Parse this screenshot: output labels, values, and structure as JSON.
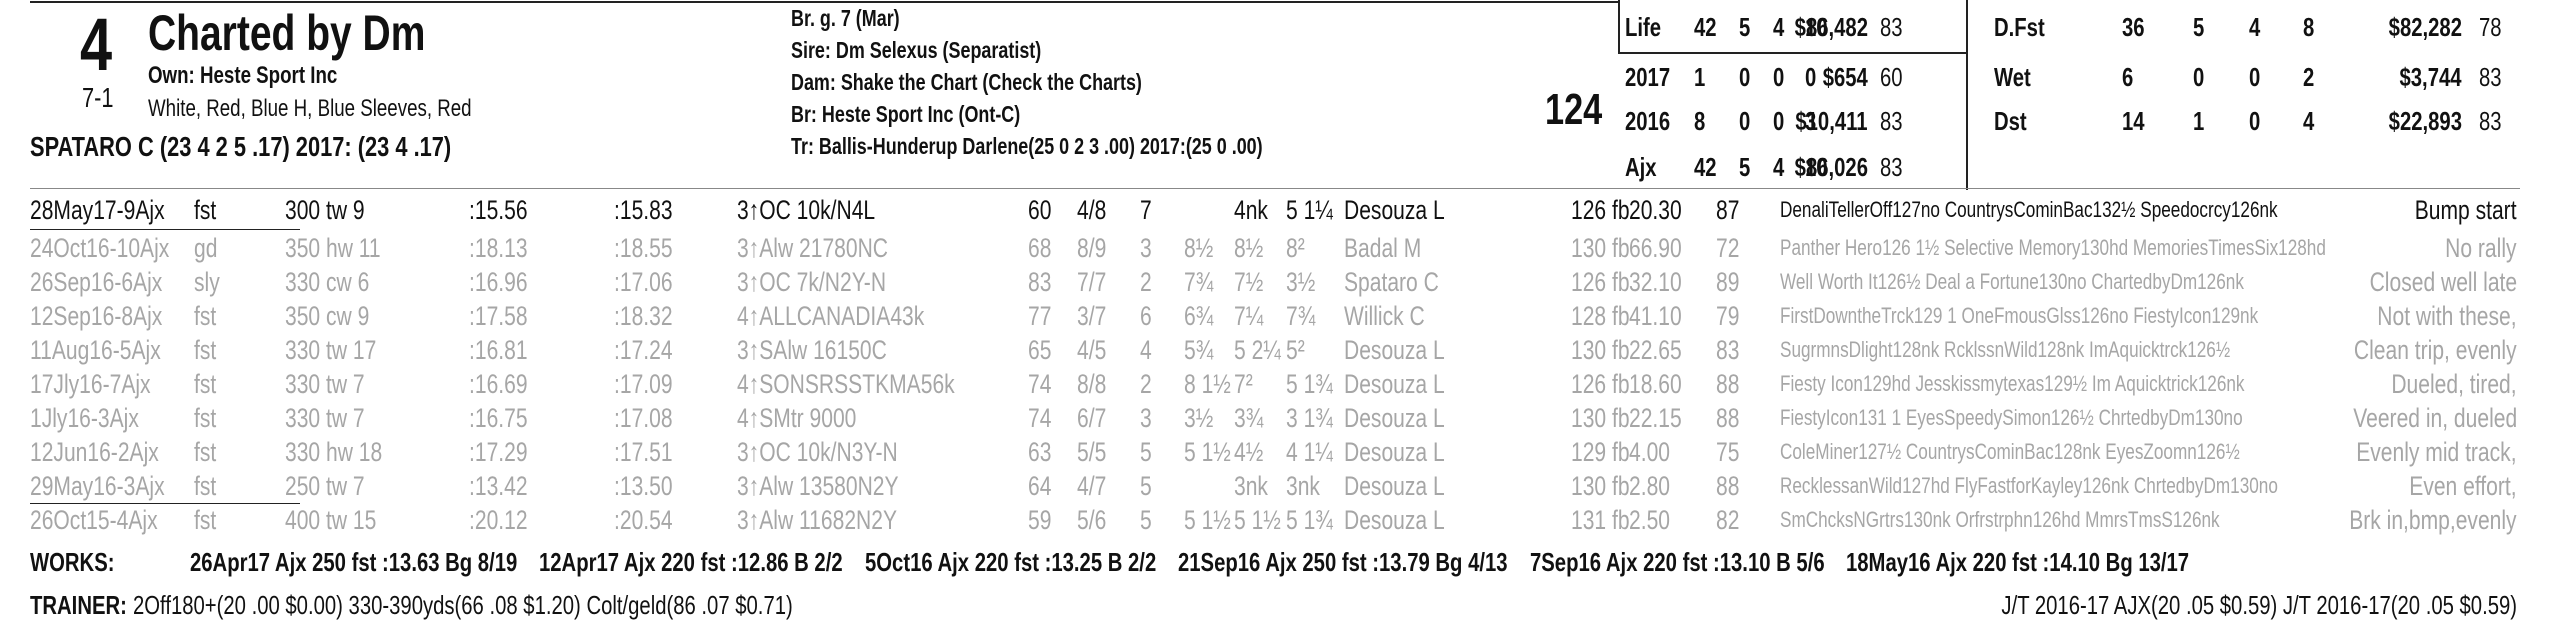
{
  "header": {
    "number": "4",
    "odds": "7-1",
    "name": "Charted by Dm",
    "owner": "Own: Heste Sport Inc",
    "silks": "White, Red, Blue H, Blue Sleeves, Red",
    "jockey": "SPATARO C (23 4 2 5 .17) 2017: (23 4 .17)"
  },
  "pedigree": [
    "Br. g. 7 (Mar)",
    "Sire: Dm Selexus (Separatist)",
    "Dam: Shake the Chart (Check the Charts)",
    "Br:  Heste Sport Inc (Ont-C)",
    "Tr:  Ballis-Hunderup Darlene(25 0 2 3 .00) 2017:(25 0 .00)"
  ],
  "weight": "124",
  "record": {
    "rows": [
      [
        "Life",
        "42",
        "5",
        "4",
        "10",
        "$86,482",
        "83"
      ],
      [
        "2017",
        "1",
        "0",
        "0",
        "0",
        "$654",
        "60"
      ],
      [
        "2016",
        "8",
        "0",
        "0",
        "3",
        "$10,411",
        "83"
      ],
      [
        "Ajx",
        "42",
        "5",
        "4",
        "10",
        "$86,026",
        "83"
      ]
    ]
  },
  "surface": {
    "rows": [
      [
        "D.Fst",
        "36",
        "5",
        "4",
        "8",
        "$82,282",
        "78"
      ],
      [
        "Wet",
        "6",
        "0",
        "0",
        "2",
        "$3,744",
        "83"
      ],
      [
        "Dst",
        "14",
        "1",
        "0",
        "4",
        "$22,893",
        "83"
      ]
    ]
  },
  "past_performances": {
    "rows": [
      [
        "28May17-9Ajx",
        "fst",
        "300 tw 9",
        ":15.56",
        ":15.83",
        "3↑OC 10k/N4L",
        "60",
        "4/8",
        "7",
        "",
        "4nk",
        "5 1¼",
        "Desouza L",
        "126 fb",
        "20.30",
        "87",
        "DenaliTellerOff127no CountrysCominBac132½ Speedocrcy126nk",
        "Bump start"
      ],
      [
        "24Oct16-10Ajx",
        "gd",
        "350 hw 11",
        ":18.13",
        ":18.55",
        "3↑Alw 21780NC",
        "68",
        "8/9",
        "3",
        "8½",
        "8½",
        "8²",
        "Badal M",
        "130 fb",
        "66.90",
        "72",
        "Panther Hero126 1½ Selective Memory130hd MemoriesTimesSix128hd",
        "No rally"
      ],
      [
        "26Sep16-6Ajx",
        "sly",
        "330 cw 6",
        ":16.96",
        ":17.06",
        "3↑OC 7k/N2Y-N",
        "83",
        "7/7",
        "2",
        "7¾",
        "7½",
        "3½",
        "Spataro C",
        "126 fb",
        "32.10",
        "89",
        "Well Worth It126½ Deal a Fortune130no ChartedbyDm126nk",
        "Closed well late"
      ],
      [
        "12Sep16-8Ajx",
        "fst",
        "350 cw 9",
        ":17.58",
        ":18.32",
        "4↑ALLCANADIA43k",
        "77",
        "3/7",
        "6",
        "6¾",
        "7¼",
        "7¾",
        "Willick C",
        "128 fb",
        "41.10",
        "79",
        "FirstDowntheTrck129 1 OneFmousGlss126no FiestyIcon129nk",
        "Not with these,"
      ],
      [
        "11Aug16-5Ajx",
        "fst",
        "330 tw 17",
        ":16.81",
        ":17.24",
        "3↑SAlw 16150C",
        "65",
        "4/5",
        "4",
        "5¾",
        "5 2¼",
        "5²",
        "Desouza L",
        "130 fb",
        "22.65",
        "83",
        "SugrmnsDlight128nk RcklssnWild128nk ImAquicktrck126½",
        "Clean trip, evenly"
      ],
      [
        "17Jly16-7Ajx",
        "fst",
        "330 tw 7",
        ":16.69",
        ":17.09",
        "4↑SONSRSSTKMA56k",
        "74",
        "8/8",
        "2",
        "8 1½",
        "7²",
        "5 1¾",
        "Desouza L",
        "126 fb",
        "18.60",
        "88",
        "Fiesty Icon129hd Jesskissmytexas129½ Im Aquicktrick126nk",
        "Dueled, tired,"
      ],
      [
        "1Jly16-3Ajx",
        "fst",
        "330 tw 7",
        ":16.75",
        ":17.08",
        "4↑SMtr 9000",
        "74",
        "6/7",
        "3",
        "3½",
        "3¾",
        "3 1¾",
        "Desouza L",
        "130 fb",
        "22.15",
        "88",
        "FiestyIcon131 1 EyesSpeedySimon126½ ChrtedbyDm130no",
        "Veered in, dueled"
      ],
      [
        "12Jun16-2Ajx",
        "fst",
        "330 hw 18",
        ":17.29",
        ":17.51",
        "3↑OC 10k/N3Y-N",
        "63",
        "5/5",
        "5",
        "5 1½",
        "4½",
        "4 1¼",
        "Desouza L",
        "129 fb",
        "4.00",
        "75",
        "ColeMiner127½ CountrysCominBac128nk EyesZoomn126½",
        "Evenly mid track,"
      ],
      [
        "29May16-3Ajx",
        "fst",
        "250 tw 7",
        ":13.42",
        ":13.50",
        "3↑Alw 13580N2Y",
        "64",
        "4/7",
        "5",
        "",
        "3nk",
        "3nk",
        "Desouza L",
        "130 fb",
        "2.80",
        "88",
        "RecklessanWild127hd FlyFastforKayley126nk ChrtedbyDm130no",
        "Even effort,"
      ],
      [
        "26Oct15-4Ajx",
        "fst",
        "400 tw 15",
        ":20.12",
        ":20.54",
        "3↑Alw 11682N2Y",
        "59",
        "5/6",
        "5",
        "5 1½",
        "5 1½",
        "5 1¾",
        "Desouza L",
        "131 fb",
        "2.50",
        "82",
        "SmChcksNGrtrs130nk Orfrstrphn126hd MmrsTmsS126nk",
        "Brk in,bmp,evenly"
      ]
    ]
  },
  "works": {
    "label": "WORKS:",
    "entries": [
      "26Apr17 Ajx 250 fst :13.63 Bg 8/19",
      "12Apr17 Ajx 220 fst :12.86 B 2/2",
      "5Oct16 Ajx 220 fst :13.25 B 2/2",
      "21Sep16 Ajx 250 fst :13.79 Bg 4/13",
      "7Sep16 Ajx 220 fst :13.10 B 5/6",
      "18May16 Ajx 220 fst :14.10 Bg 13/17"
    ]
  },
  "trainer": {
    "label": "TRAINER:",
    "stats": "2Off180+(20 .00 $0.00) 330-390yds(66 .08 $1.20) Colt/geld(86 .07 $0.71)",
    "jt": "J/T 2016-17 AJX(20 .05 $0.59)  J/T 2016-17(20 .05 $0.59)"
  }
}
